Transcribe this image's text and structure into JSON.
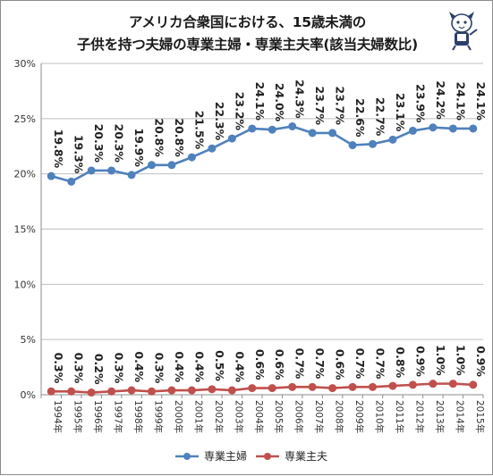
{
  "chart_data": {
    "type": "line",
    "title_line1": "アメリカ合衆国における、15歳未満の",
    "title_line2": "子供を持つ夫婦の専業主婦・専業主夫率(該当夫婦数比)",
    "categories": [
      "1994年",
      "1995年",
      "1996年",
      "1997年",
      "1998年",
      "1999年",
      "2000年",
      "2001年",
      "2002年",
      "2003年",
      "2004年",
      "2005年",
      "2006年",
      "2007年",
      "2008年",
      "2009年",
      "2010年",
      "2011年",
      "2012年",
      "2013年",
      "2014年",
      "2015年"
    ],
    "series": [
      {
        "name": "専業主婦",
        "color": "#4f81bd",
        "values": [
          19.8,
          19.3,
          20.3,
          20.3,
          19.9,
          20.8,
          20.8,
          21.5,
          22.3,
          23.2,
          24.1,
          24.0,
          24.3,
          23.7,
          23.7,
          22.6,
          22.7,
          23.1,
          23.9,
          24.2,
          24.1,
          24.1
        ],
        "labels": [
          "19.8%",
          "19.3%",
          "20.3%",
          "20.3%",
          "19.9%",
          "20.8%",
          "20.8%",
          "21.5%",
          "22.3%",
          "23.2%",
          "24.1%",
          "24.0%",
          "24.3%",
          "23.7%",
          "23.7%",
          "22.6%",
          "22.7%",
          "23.1%",
          "23.9%",
          "24.2%",
          "24.1%",
          "24.1%"
        ]
      },
      {
        "name": "専業主夫",
        "color": "#c0504d",
        "values": [
          0.3,
          0.3,
          0.2,
          0.3,
          0.4,
          0.3,
          0.4,
          0.4,
          0.5,
          0.4,
          0.6,
          0.6,
          0.7,
          0.7,
          0.6,
          0.7,
          0.7,
          0.8,
          0.9,
          1.0,
          1.0,
          0.9
        ],
        "labels": [
          "0.3%",
          "0.3%",
          "0.2%",
          "0.3%",
          "0.4%",
          "0.3%",
          "0.4%",
          "0.4%",
          "0.5%",
          "0.4%",
          "0.6%",
          "0.6%",
          "0.7%",
          "0.7%",
          "0.6%",
          "0.7%",
          "0.7%",
          "0.8%",
          "0.9%",
          "1.0%",
          "1.0%",
          "0.9%"
        ]
      }
    ],
    "yticks": [
      "0%",
      "5%",
      "10%",
      "15%",
      "20%",
      "25%",
      "30%"
    ],
    "ylim": [
      0,
      30
    ],
    "grid": true,
    "legend_position": "bottom"
  }
}
